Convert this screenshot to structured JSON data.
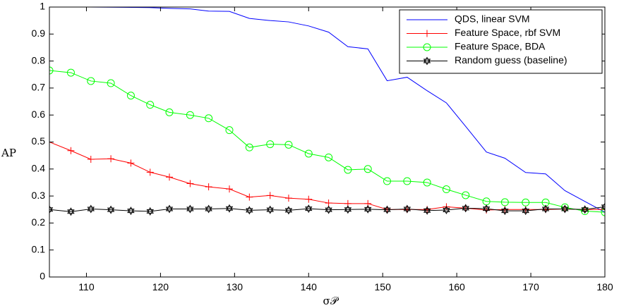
{
  "chart_data": {
    "type": "line",
    "xlabel": "σ𝒫",
    "ylabel": "AP",
    "xlim": [
      105,
      180
    ],
    "ylim": [
      0,
      1
    ],
    "xticks": [
      110,
      120,
      130,
      140,
      150,
      160,
      170,
      180
    ],
    "yticks": [
      0,
      0.1,
      0.2,
      0.3,
      0.4,
      0.5,
      0.6,
      0.7,
      0.8,
      0.9,
      1
    ],
    "grid": false,
    "legend_position": "top-right",
    "series": [
      {
        "name": "QDS, linear SVM",
        "color": "#0000ff",
        "marker": "none",
        "x": [
          105,
          110,
          115,
          118.5,
          121.2,
          124,
          126.5,
          129.3,
          132,
          134.8,
          137.3,
          140,
          142.7,
          145.3,
          148,
          150.6,
          153.3,
          156,
          158.6,
          161.2,
          164,
          166.5,
          169.3,
          172,
          174.6,
          177.3,
          180
        ],
        "y": [
          1.0,
          1.0,
          0.999,
          0.998,
          0.995,
          0.993,
          0.985,
          0.984,
          0.958,
          0.95,
          0.945,
          0.93,
          0.907,
          0.853,
          0.845,
          0.727,
          0.74,
          0.69,
          0.645,
          0.558,
          0.463,
          0.44,
          0.387,
          0.382,
          0.32,
          0.28,
          0.24
        ]
      },
      {
        "name": "Feature Space, rbf SVM",
        "color": "#ff0000",
        "marker": "plus",
        "x": [
          105,
          107.9,
          110.6,
          113.3,
          116,
          118.6,
          121.2,
          124,
          126.5,
          129.3,
          132,
          134.8,
          137.3,
          140,
          142.7,
          145.3,
          148,
          150.6,
          153.3,
          156,
          158.6,
          161.2,
          164,
          166.5,
          169.3,
          172,
          174.6,
          177.3,
          180
        ],
        "y": [
          0.5,
          0.468,
          0.436,
          0.438,
          0.422,
          0.388,
          0.37,
          0.346,
          0.334,
          0.326,
          0.296,
          0.302,
          0.292,
          0.288,
          0.274,
          0.272,
          0.272,
          0.25,
          0.25,
          0.25,
          0.26,
          0.255,
          0.248,
          0.25,
          0.25,
          0.25,
          0.252,
          0.25,
          0.25
        ]
      },
      {
        "name": "Feature Space, BDA",
        "color": "#00ff00",
        "marker": "circle",
        "x": [
          105,
          107.9,
          110.6,
          113.3,
          116,
          118.6,
          121.2,
          124,
          126.5,
          129.3,
          132,
          134.8,
          137.3,
          140,
          142.7,
          145.3,
          148,
          150.6,
          153.3,
          156,
          158.6,
          161.2,
          164,
          166.5,
          169.3,
          172,
          174.6,
          177.3,
          180
        ],
        "y": [
          0.765,
          0.757,
          0.726,
          0.718,
          0.672,
          0.638,
          0.61,
          0.6,
          0.588,
          0.544,
          0.48,
          0.492,
          0.49,
          0.457,
          0.443,
          0.397,
          0.4,
          0.355,
          0.355,
          0.35,
          0.325,
          0.303,
          0.28,
          0.277,
          0.276,
          0.276,
          0.258,
          0.244,
          0.24
        ]
      },
      {
        "name": "Random guess (baseline)",
        "color": "#000000",
        "marker": "star",
        "x": [
          105,
          107.9,
          110.6,
          113.3,
          116,
          118.6,
          121.2,
          124,
          126.5,
          129.3,
          132,
          134.8,
          137.3,
          140,
          142.7,
          145.3,
          148,
          150.6,
          153.3,
          156,
          158.6,
          161.2,
          164,
          166.5,
          169.3,
          172,
          174.6,
          177.3,
          180
        ],
        "y": [
          0.25,
          0.242,
          0.252,
          0.249,
          0.245,
          0.243,
          0.252,
          0.252,
          0.252,
          0.254,
          0.247,
          0.249,
          0.247,
          0.253,
          0.249,
          0.25,
          0.251,
          0.249,
          0.252,
          0.246,
          0.248,
          0.255,
          0.253,
          0.245,
          0.245,
          0.252,
          0.252,
          0.25,
          0.26
        ]
      }
    ]
  }
}
